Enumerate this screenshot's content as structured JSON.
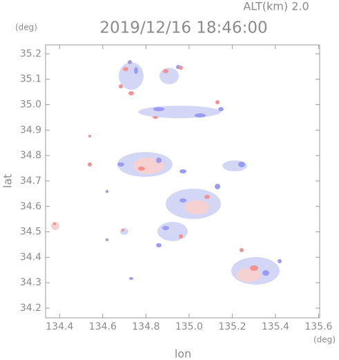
{
  "chart_data": {
    "type": "map",
    "title": "2019/12/16 18:46:00",
    "altitude_label": "ALT(km) 2.0",
    "x_label": "lon",
    "y_label": "lat",
    "x_unit": "(deg)",
    "y_unit": "(deg)",
    "xlim": [
      134.335,
      135.605
    ],
    "ylim": [
      34.162,
      35.235
    ],
    "xticks": [
      134.4,
      134.6,
      134.8,
      {
        "value": 135,
        "label": "135.0"
      },
      135.2,
      135.4,
      135.6
    ],
    "yticks": [
      34.2,
      34.3,
      34.4,
      34.5,
      34.6,
      34.7,
      34.8,
      34.9,
      {
        "value": 35,
        "label": "35.0"
      },
      35.1,
      35.2
    ]
  }
}
